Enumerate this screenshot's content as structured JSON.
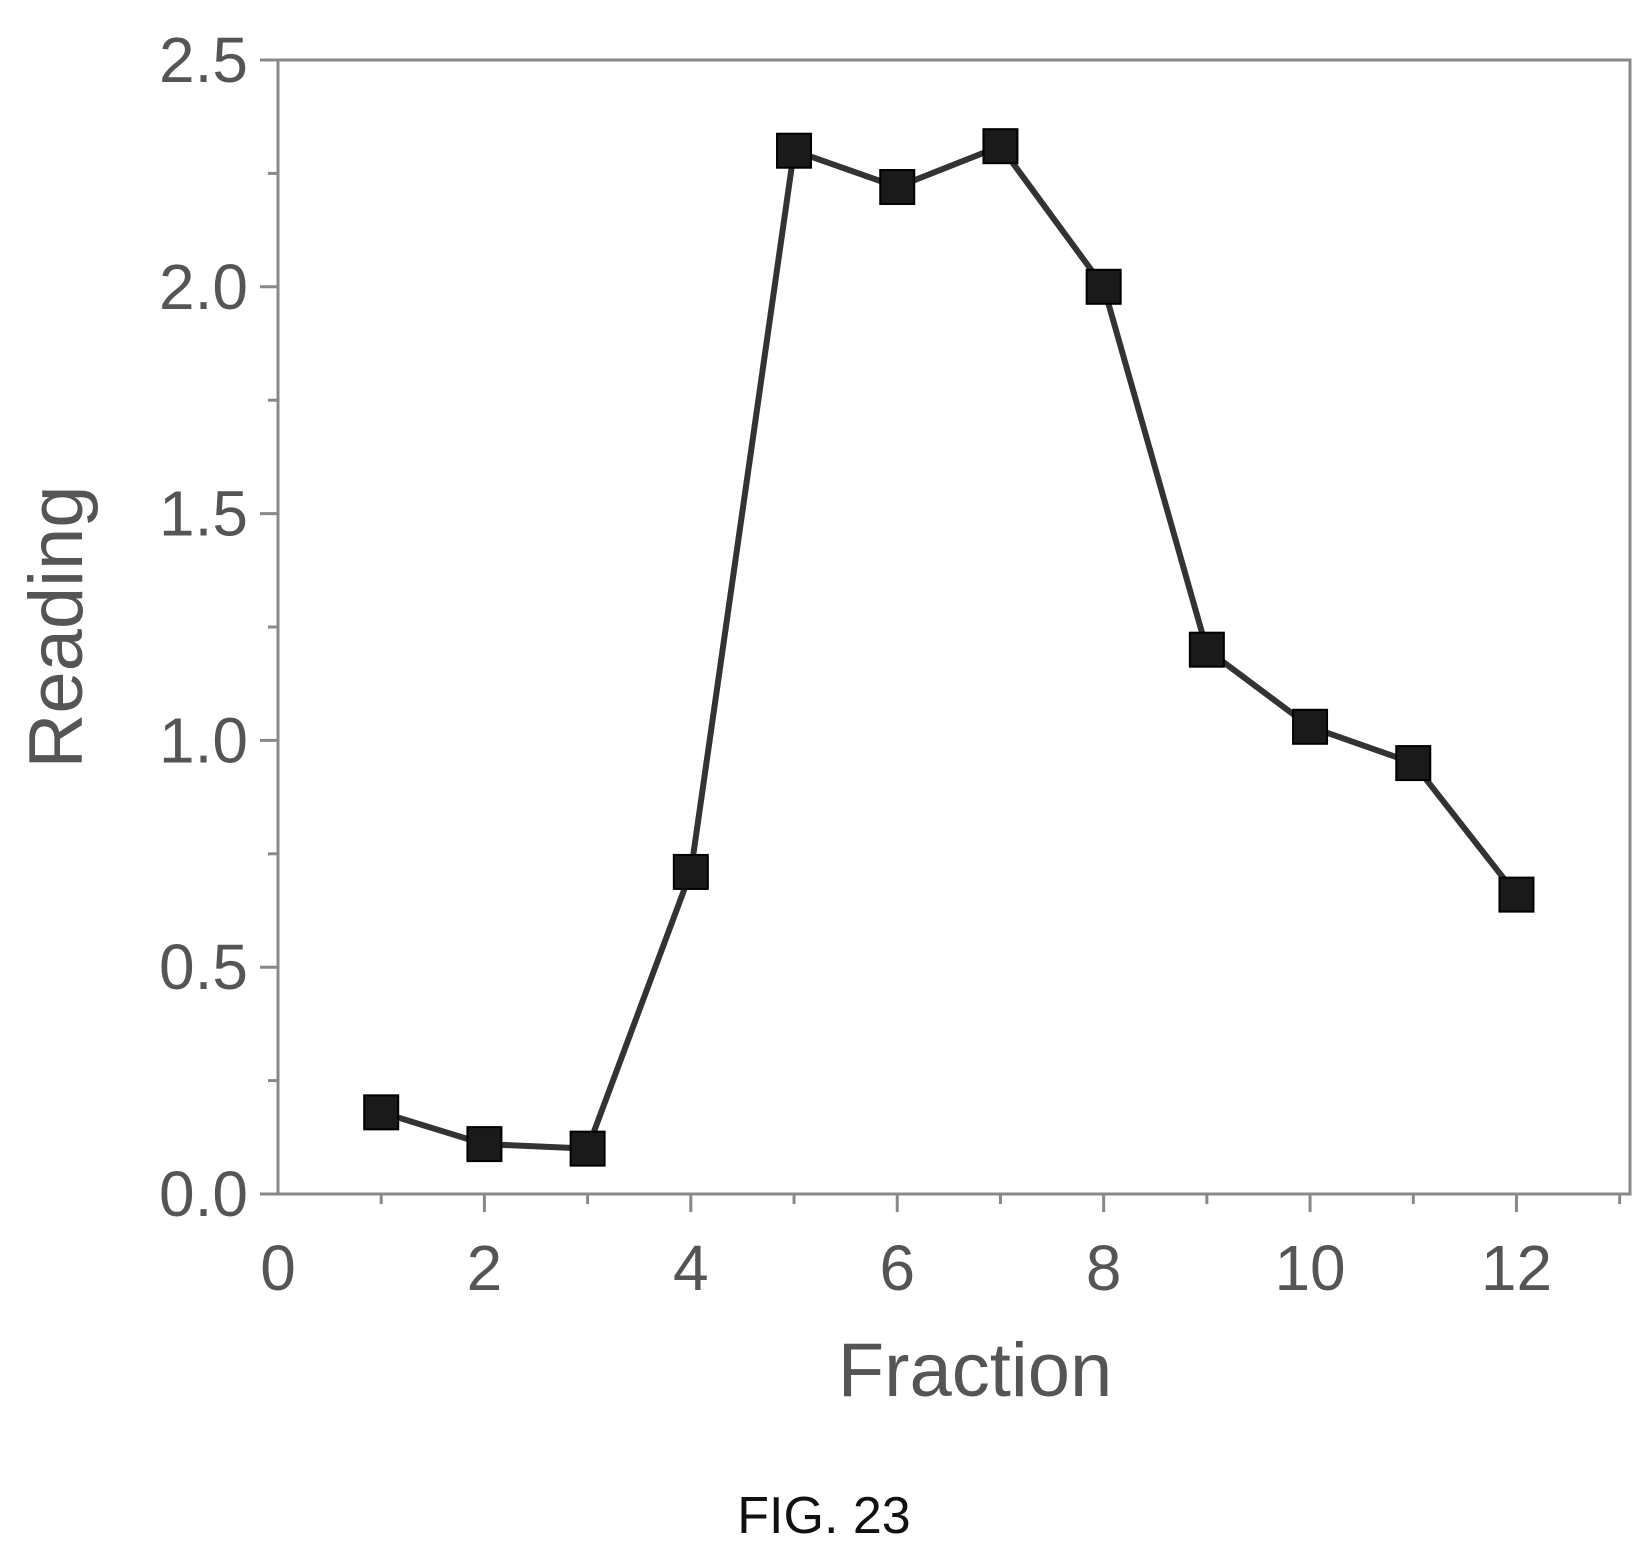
{
  "figure": {
    "caption": "FIG. 23"
  },
  "chart_data": {
    "type": "line",
    "title": "",
    "xlabel": "Fraction",
    "ylabel": "Reading",
    "xlim": [
      0,
      13.1
    ],
    "ylim": [
      0,
      2.5
    ],
    "xticks": [
      0,
      2,
      4,
      6,
      8,
      10,
      12
    ],
    "yticks": [
      0.0,
      0.5,
      1.0,
      1.5,
      2.0,
      2.5
    ],
    "ytick_labels": [
      "0.0",
      "0.5",
      "1.0",
      "1.5",
      "2.0",
      "2.5"
    ],
    "grid": false,
    "marker": "square",
    "series": [
      {
        "x": [
          1,
          2,
          3,
          4,
          5,
          6,
          7,
          8,
          9,
          10,
          11,
          12
        ],
        "y": [
          0.18,
          0.11,
          0.1,
          0.71,
          2.3,
          2.22,
          2.31,
          2.0,
          1.2,
          1.03,
          0.95,
          0.66
        ]
      }
    ],
    "colors": {
      "line": "#333333",
      "marker": "#1a1a1a",
      "axis": "#888888",
      "text": "#555555"
    }
  }
}
